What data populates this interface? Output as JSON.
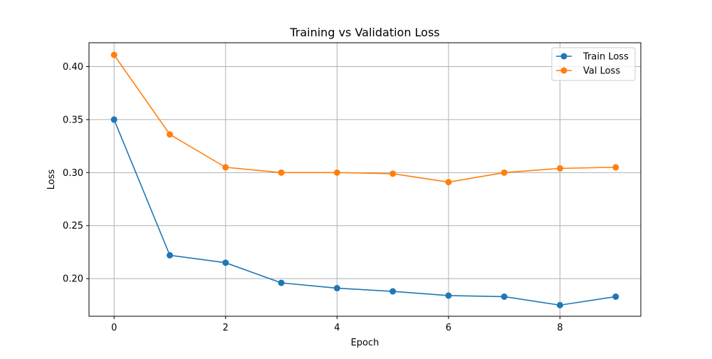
{
  "chart_data": {
    "type": "line",
    "title": "Training vs Validation Loss",
    "xlabel": "Epoch",
    "ylabel": "Loss",
    "x": [
      0,
      1,
      2,
      3,
      4,
      5,
      6,
      7,
      8,
      9
    ],
    "xlim": [
      -0.45,
      9.45
    ],
    "ylim": [
      0.1645,
      0.4225
    ],
    "xticks": [
      0,
      2,
      4,
      6,
      8
    ],
    "xtick_labels": [
      "0",
      "2",
      "4",
      "6",
      "8"
    ],
    "yticks": [
      0.2,
      0.25,
      0.3,
      0.35,
      0.4
    ],
    "ytick_labels": [
      "0.20",
      "0.25",
      "0.30",
      "0.35",
      "0.40"
    ],
    "grid": true,
    "legend_position": "top-right",
    "series": [
      {
        "name": "Train Loss",
        "color": "#1f77b4",
        "marker": "circle",
        "values": [
          0.35,
          0.222,
          0.215,
          0.196,
          0.191,
          0.188,
          0.184,
          0.183,
          0.175,
          0.183
        ]
      },
      {
        "name": "Val Loss",
        "color": "#ff7f0e",
        "marker": "circle",
        "values": [
          0.411,
          0.336,
          0.305,
          0.3,
          0.3,
          0.299,
          0.291,
          0.3,
          0.304,
          0.305
        ]
      }
    ]
  }
}
